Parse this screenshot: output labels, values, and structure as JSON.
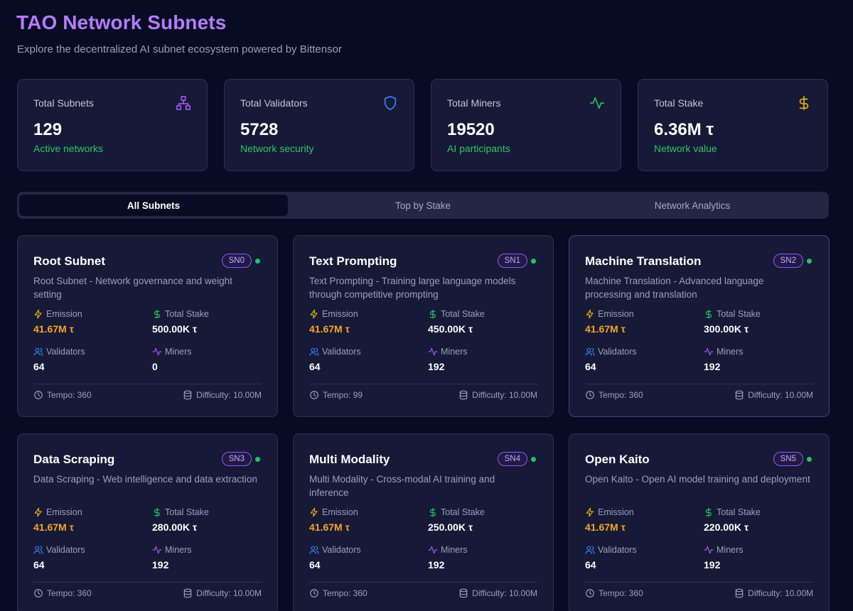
{
  "header": {
    "title": "TAO Network Subnets",
    "subtitle": "Explore the decentralized AI subnet ecosystem powered by Bittensor"
  },
  "stats": [
    {
      "label": "Total Subnets",
      "value": "129",
      "sub": "Active networks",
      "icon": "network-icon",
      "icon_color": "#a855f7"
    },
    {
      "label": "Total Validators",
      "value": "5728",
      "sub": "Network security",
      "icon": "shield-icon",
      "icon_color": "#3b82f6"
    },
    {
      "label": "Total Miners",
      "value": "19520",
      "sub": "AI participants",
      "icon": "activity-icon",
      "icon_color": "#22c55e"
    },
    {
      "label": "Total Stake",
      "value": "6.36M τ",
      "sub": "Network value",
      "icon": "dollar-icon",
      "icon_color": "#eab308"
    }
  ],
  "tabs": [
    {
      "label": "All Subnets",
      "active": true
    },
    {
      "label": "Top by Stake",
      "active": false
    },
    {
      "label": "Network Analytics",
      "active": false
    }
  ],
  "metric_labels": {
    "emission": "Emission",
    "stake": "Total Stake",
    "validators": "Validators",
    "miners": "Miners"
  },
  "subnets": [
    {
      "name": "Root Subnet",
      "badge": "SN0",
      "desc": "Root Subnet - Network governance and weight setting",
      "emission": "41.67M τ",
      "stake": "500.00K τ",
      "validators": "64",
      "miners": "0",
      "tempo": "Tempo: 360",
      "difficulty": "Difficulty: 10.00M"
    },
    {
      "name": "Text Prompting",
      "badge": "SN1",
      "desc": "Text Prompting - Training large language models through competitive prompting",
      "emission": "41.67M τ",
      "stake": "450.00K τ",
      "validators": "64",
      "miners": "192",
      "tempo": "Tempo: 99",
      "difficulty": "Difficulty: 10.00M"
    },
    {
      "name": "Machine Translation",
      "badge": "SN2",
      "desc": "Machine Translation - Advanced language processing and translation",
      "emission": "41.67M τ",
      "stake": "300.00K τ",
      "validators": "64",
      "miners": "192",
      "tempo": "Tempo: 360",
      "difficulty": "Difficulty: 10.00M"
    },
    {
      "name": "Data Scraping",
      "badge": "SN3",
      "desc": "Data Scraping - Web intelligence and data extraction",
      "emission": "41.67M τ",
      "stake": "280.00K τ",
      "validators": "64",
      "miners": "192",
      "tempo": "Tempo: 360",
      "difficulty": "Difficulty: 10.00M"
    },
    {
      "name": "Multi Modality",
      "badge": "SN4",
      "desc": "Multi Modality - Cross-modal AI training and inference",
      "emission": "41.67M τ",
      "stake": "250.00K τ",
      "validators": "64",
      "miners": "192",
      "tempo": "Tempo: 360",
      "difficulty": "Difficulty: 10.00M"
    },
    {
      "name": "Open Kaito",
      "badge": "SN5",
      "desc": "Open Kaito - Open AI model training and deployment",
      "emission": "41.67M τ",
      "stake": "220.00K τ",
      "validators": "64",
      "miners": "192",
      "tempo": "Tempo: 360",
      "difficulty": "Difficulty: 10.00M"
    }
  ]
}
